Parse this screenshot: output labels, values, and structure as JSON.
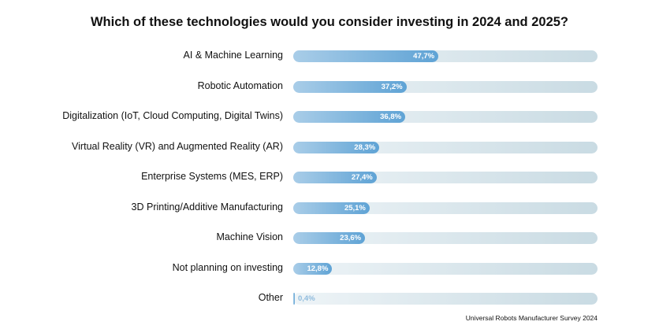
{
  "chart_data": {
    "type": "bar",
    "orientation": "horizontal",
    "title": "Which of these technologies would you consider investing in 2024 and 2025?",
    "categories": [
      "AI & Machine Learning",
      "Robotic Automation",
      "Digitalization (IoT, Cloud Computing, Digital Twins)",
      "Virtual Reality (VR) and Augmented Reality (AR)",
      "Enterprise Systems (MES, ERP)",
      "3D Printing/Additive Manufacturing",
      "Machine Vision",
      "Not planning on investing",
      "Other"
    ],
    "values": [
      47.7,
      37.2,
      36.8,
      28.3,
      27.4,
      25.1,
      23.6,
      12.8,
      0.4
    ],
    "value_labels": [
      "47,7%",
      "37,2%",
      "36,8%",
      "28,3%",
      "27,4%",
      "25,1%",
      "23,6%",
      "12,8%",
      "0,4%"
    ],
    "xlim": [
      0,
      100
    ],
    "grid": false,
    "colors": {
      "fill_start": "#a9cde8",
      "fill_end": "#5fa3d5",
      "track_start": "#eef4f7",
      "track_end": "#c9dbe3"
    }
  },
  "source": "Universal Robots Manufacturer Survey 2024"
}
